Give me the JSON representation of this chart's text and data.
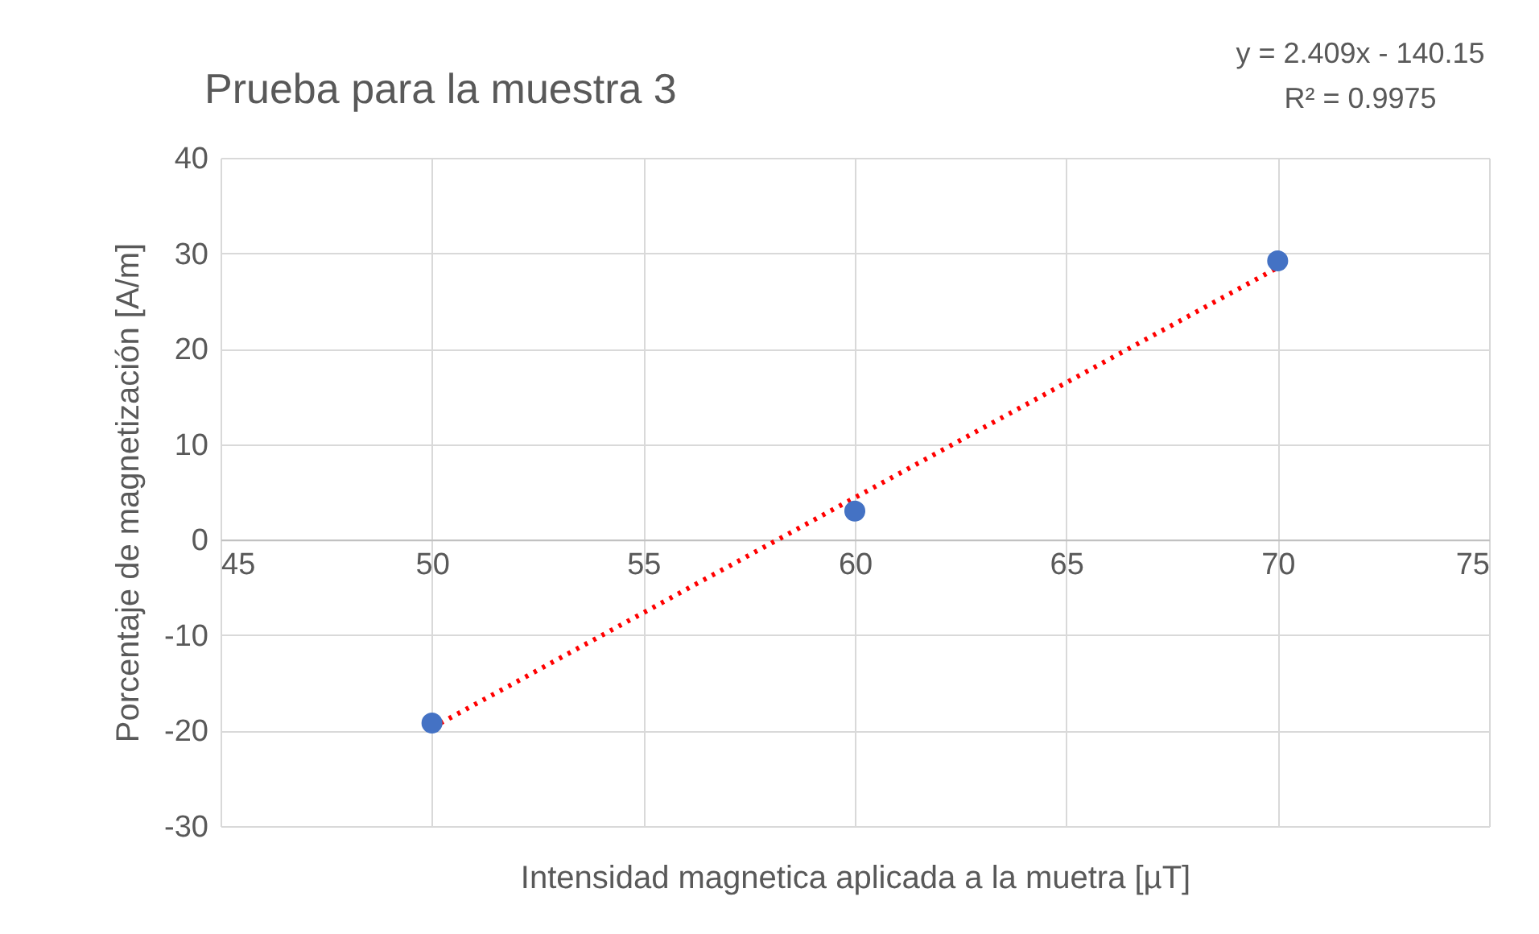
{
  "chart_data": {
    "type": "scatter",
    "title": "Prueba para la muestra 3",
    "xlabel": "Intensidad magnetica aplicada a la muetra [µT]",
    "ylabel": "Porcentaje de magnetización [A/m]",
    "annotations": [
      "y = 2.409x - 140.15",
      "R² = 0.9975"
    ],
    "x": [
      50,
      60,
      70
    ],
    "series": [
      {
        "color": "#4472c4",
        "values": [
          -19.2,
          3,
          29.2
        ],
        "marker": "circle"
      },
      {
        "type": "line",
        "color": "#ff0000",
        "x": [
          50,
          70
        ],
        "values": [
          -19.7,
          28.5
        ],
        "line_style": "dotted",
        "marker": "none"
      }
    ],
    "xlim": [
      45,
      75
    ],
    "xticks": [
      45,
      50,
      55,
      60,
      65,
      70,
      75
    ],
    "ylim": [
      -30,
      40
    ],
    "yticks": [
      -30,
      -20,
      -10,
      0,
      10,
      20,
      30,
      40
    ],
    "grid": true
  }
}
